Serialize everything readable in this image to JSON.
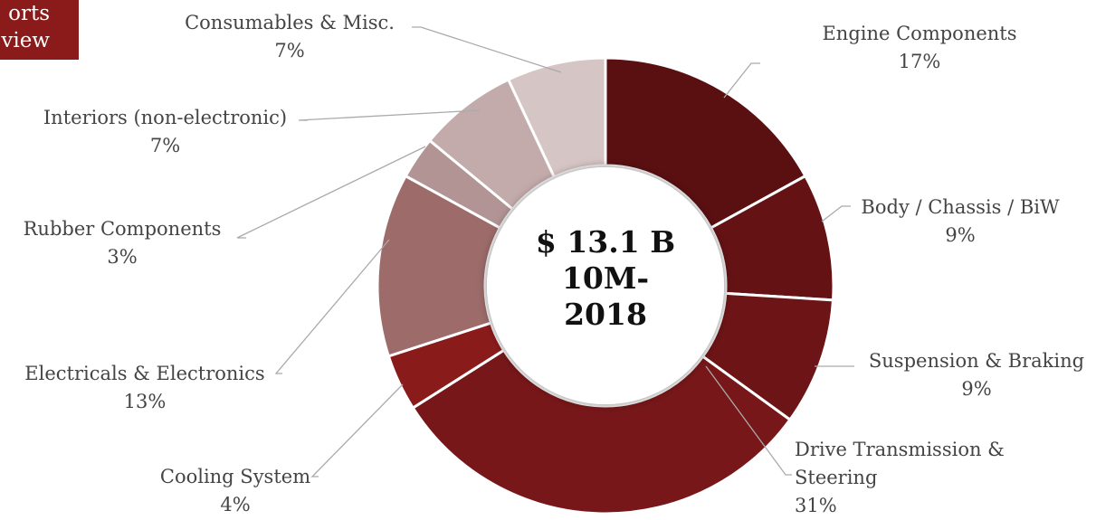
{
  "badge": [
    "orts",
    "view"
  ],
  "chart_data": {
    "type": "donut",
    "center_label": [
      "$ 13.1 B",
      "10M-",
      "2018"
    ],
    "categories": [
      "Engine Components",
      "Body / Chassis / BiW",
      "Suspension & Braking",
      "Drive Transmission & Steering",
      "Cooling System",
      "Electricals & Electronics",
      "Rubber Components",
      "Interiors (non-electronic)",
      "Consumables & Misc."
    ],
    "values": [
      17,
      9,
      9,
      31,
      4,
      13,
      3,
      7,
      7
    ],
    "value_labels": [
      "17%",
      "9%",
      "9%",
      "31%",
      "4%",
      "13%",
      "3%",
      "7%",
      "7%"
    ],
    "colors": [
      "#5a0f11",
      "#641214",
      "#6d1416",
      "#771719",
      "#8a1b1b",
      "#9c6b6a",
      "#b39494",
      "#c4abab",
      "#d6c5c5"
    ]
  }
}
